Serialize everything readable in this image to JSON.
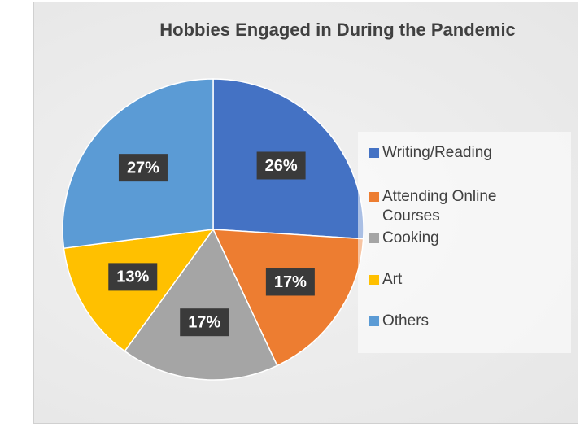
{
  "chart_data": {
    "type": "pie",
    "title": "Hobbies Engaged in During the Pandemic",
    "categories": [
      "Writing/Reading",
      "Attending Online Courses",
      "Cooking",
      "Art",
      "Others"
    ],
    "values": [
      26,
      17,
      17,
      13,
      27
    ],
    "value_labels": [
      "26%",
      "17%",
      "17%",
      "13%",
      "27%"
    ],
    "colors": [
      "#4472c4",
      "#ed7d31",
      "#a5a5a5",
      "#ffc000",
      "#5b9bd5"
    ],
    "legend": "right"
  }
}
